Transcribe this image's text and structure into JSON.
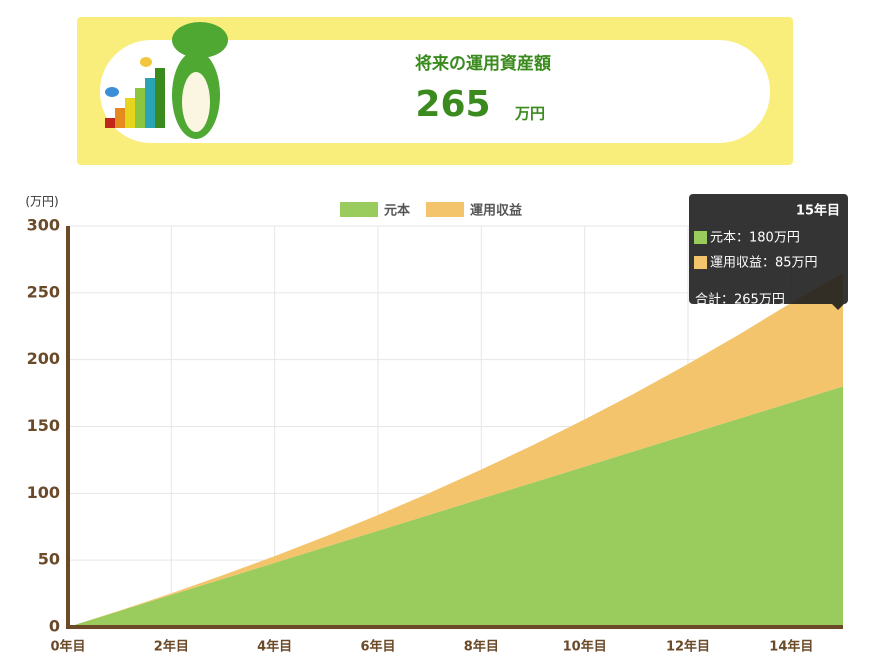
{
  "header": {
    "title": "将来の運用資産額",
    "amount": "265",
    "unit": "万円"
  },
  "chart_data": {
    "type": "area",
    "stacked": true,
    "y_label": "(万円)",
    "x": [
      0,
      1,
      2,
      3,
      4,
      5,
      6,
      7,
      8,
      9,
      10,
      11,
      12,
      13,
      14,
      15
    ],
    "series": [
      {
        "name": "元本",
        "color": "#99cb5d",
        "values": [
          0,
          12,
          24,
          36,
          48,
          60,
          72,
          84,
          96,
          108,
          120,
          132,
          144,
          156,
          168,
          180
        ]
      },
      {
        "name": "運用収益",
        "color": "#f4c46c",
        "values": [
          0,
          0.3,
          1.2,
          2.8,
          5,
          8,
          11.8,
          16.3,
          21.8,
          28.1,
          35.3,
          43.5,
          52.8,
          63.1,
          74.6,
          85
        ]
      }
    ],
    "xlim": [
      0,
      15
    ],
    "xticks": [
      {
        "value": 0,
        "label": "0年目"
      },
      {
        "value": 2,
        "label": "2年目"
      },
      {
        "value": 4,
        "label": "4年目"
      },
      {
        "value": 6,
        "label": "6年目"
      },
      {
        "value": 8,
        "label": "8年目"
      },
      {
        "value": 10,
        "label": "10年目"
      },
      {
        "value": 12,
        "label": "12年目"
      },
      {
        "value": 14,
        "label": "14年目"
      }
    ],
    "ylim": [
      0,
      300
    ],
    "yticks": [
      0,
      50,
      100,
      150,
      200,
      250,
      300
    ],
    "grid": true,
    "tooltip": {
      "title": "15年目",
      "lines": [
        "元本：180万円",
        "運用収益：85万円",
        "合計：265万円"
      ]
    }
  }
}
